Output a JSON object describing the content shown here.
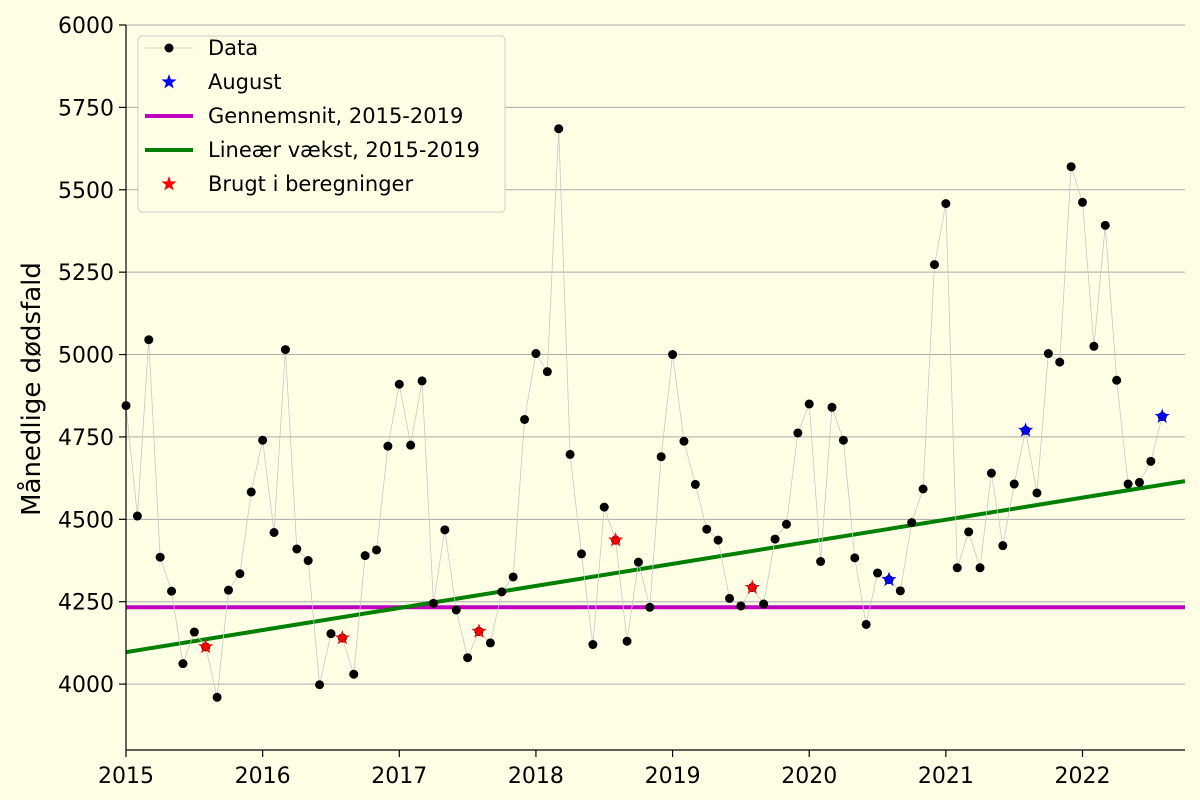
{
  "chart_data": {
    "type": "line",
    "ylabel": "Månedlige dødsfald",
    "xlim": [
      "2015-01",
      "2022-10"
    ],
    "ylim": [
      3800,
      6000
    ],
    "x_ticks": [
      "2015",
      "2016",
      "2017",
      "2018",
      "2019",
      "2020",
      "2021",
      "2022"
    ],
    "y_ticks": [
      4000,
      4250,
      4500,
      4750,
      5000,
      5250,
      5500,
      5750,
      6000
    ],
    "grid": "horizontal",
    "legend_position": "top-left",
    "colors": {
      "background": "#ffffe6",
      "data": "#000000",
      "data_line": "#c8c8c8",
      "august": "#0000ff",
      "mean": "#bf00bf",
      "trend": "#008000",
      "used": "#ff0000",
      "grid": "#aaaaaa"
    },
    "legend": [
      "Data",
      "August",
      "Gennemsnit, 2015-2019",
      "Lineær vækst, 2015-2019",
      "Brugt i beregninger"
    ],
    "series": [
      {
        "name": "Data",
        "start": "2015-01",
        "values": [
          4845,
          4510,
          5045,
          4385,
          4282,
          4062,
          4158,
          4113,
          3960,
          4285,
          4335,
          4583,
          4740,
          4460,
          5015,
          4410,
          4375,
          3998,
          4153,
          4140,
          4030,
          4390,
          4407,
          4722,
          4910,
          4725,
          4920,
          4245,
          4468,
          4225,
          4080,
          4160,
          4125,
          4280,
          4325,
          4803,
          5003,
          4948,
          5685,
          4697,
          4395,
          4120,
          4537,
          4437,
          4130,
          4370,
          4233,
          4690,
          5000,
          4737,
          4606,
          4470,
          4437,
          4260,
          4237,
          4293,
          4243,
          4440,
          4485,
          4762,
          4850,
          4372,
          4840,
          4740,
          4383,
          4181,
          4337,
          4317,
          4283,
          4490,
          4592,
          5273,
          5458,
          4353,
          4462,
          4353,
          4640,
          4420,
          4607,
          4770,
          4580,
          5003,
          4977,
          5570,
          5462,
          5025,
          5392,
          4922,
          4607,
          4612,
          4676,
          4812
        ]
      },
      {
        "name": "August",
        "points": [
          [
            "2020-08",
            4317
          ],
          [
            "2021-08",
            4770
          ],
          [
            "2022-08",
            4812
          ]
        ]
      },
      {
        "name": "Gennemsnit, 2015-2019",
        "value": 4233
      },
      {
        "name": "Lineær vækst, 2015-2019",
        "start": [
          "2015-01",
          4097
        ],
        "end": [
          "2022-10",
          4616
        ]
      },
      {
        "name": "Brugt i beregninger",
        "points": [
          [
            "2015-08",
            4113
          ],
          [
            "2016-08",
            4140
          ],
          [
            "2017-08",
            4160
          ],
          [
            "2018-08",
            4437
          ],
          [
            "2019-08",
            4293
          ]
        ]
      }
    ]
  }
}
